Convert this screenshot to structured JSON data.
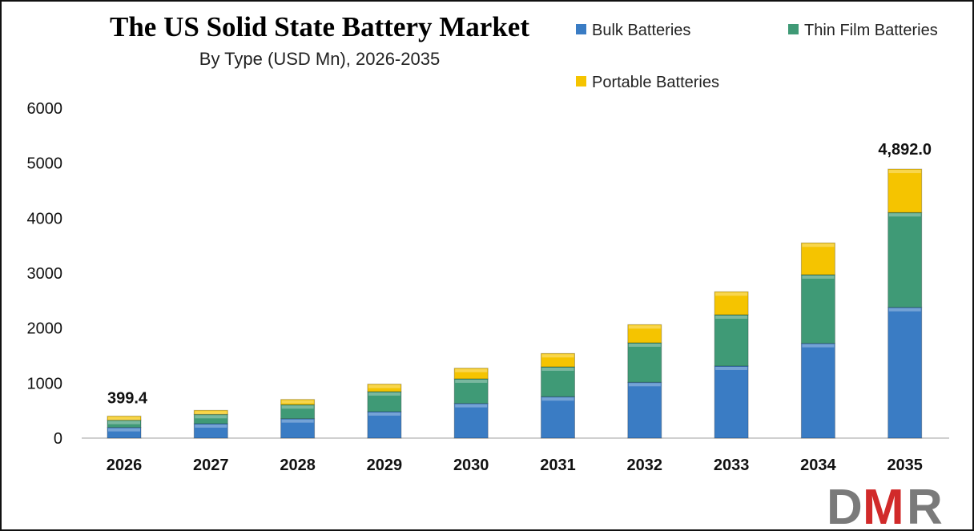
{
  "chart_data": {
    "type": "bar",
    "stacked": true,
    "title": "The US Solid State Battery Market",
    "subtitle": "By Type (USD Mn), 2026-2035",
    "xlabel": "",
    "ylabel": "",
    "ylim": [
      0,
      6000
    ],
    "yticks": [
      "0",
      "1000",
      "2000",
      "3000",
      "4000",
      "5000",
      "6000"
    ],
    "grid": false,
    "legend_position": "top-right",
    "categories": [
      "2026",
      "2027",
      "2028",
      "2029",
      "2030",
      "2031",
      "2032",
      "2033",
      "2034",
      "2035"
    ],
    "series": [
      {
        "name": "Bulk Batteries",
        "color": "#3a7cc4",
        "values": [
          194,
          262,
          354,
          481,
          631,
          753,
          1015,
          1311,
          1723,
          2378
        ]
      },
      {
        "name": "Thin Film Batteries",
        "color": "#3f9a76",
        "values": [
          131,
          170,
          253,
          364,
          447,
          543,
          718,
          932,
          1248,
          1724
        ]
      },
      {
        "name": "Portable Batteries",
        "color": "#f5c400",
        "values": [
          74,
          73,
          96,
          136,
          193,
          243,
          330,
          418,
          578,
          790
        ]
      }
    ],
    "data_labels": [
      {
        "category": "2026",
        "text": "399.4"
      },
      {
        "category": "2035",
        "text": "4,892.0"
      }
    ]
  },
  "logo": {
    "text": "DMR",
    "colors": [
      "#7a7a7a",
      "#d12a2a"
    ]
  }
}
